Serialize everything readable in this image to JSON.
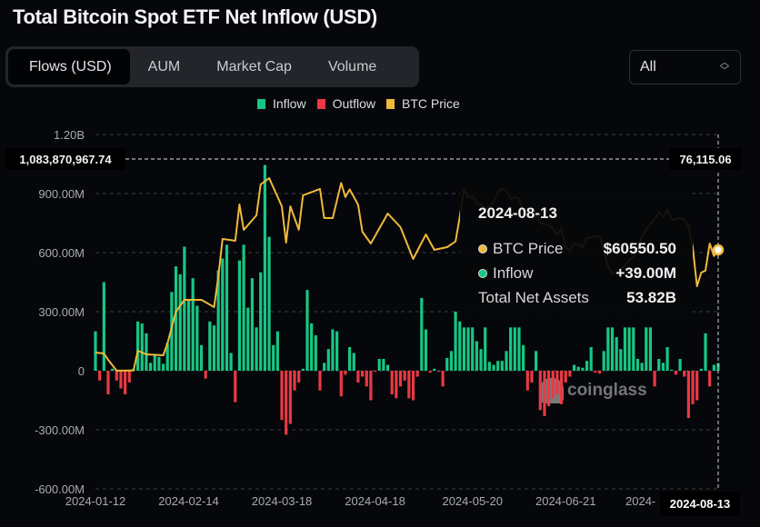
{
  "header": {
    "title": "Total Bitcoin Spot ETF Net Inflow (USD)"
  },
  "tabs": [
    {
      "label": "Flows (USD)",
      "active": true
    },
    {
      "label": "AUM"
    },
    {
      "label": "Market Cap"
    },
    {
      "label": "Volume"
    }
  ],
  "range_select": {
    "value": "All"
  },
  "watermark": "coinglass",
  "colors": {
    "inflow": "#16c784",
    "outflow": "#ea3943",
    "price": "#f0b93a",
    "background": "#05070b"
  },
  "tooltip": {
    "date": "2024-08-13",
    "rows": [
      {
        "label": "BTC Price",
        "value": "$60550.50",
        "color": "#f0b93a"
      },
      {
        "label": "Inflow",
        "value": "+39.00M",
        "color": "#16c784"
      },
      {
        "label": "Total Net Assets",
        "value": "53.82B"
      }
    ]
  },
  "crosshair": {
    "left_value": "1,083,870,967.74",
    "right_value": "76,115.06",
    "date": "2024-08-13"
  },
  "chart_data": {
    "type": "bar+line",
    "title": "Total Bitcoin Spot ETF Net Inflow (USD)",
    "legend": {
      "position": "top-center",
      "items": [
        "Inflow",
        "Outflow",
        "BTC Price"
      ]
    },
    "y_left": {
      "unit": "USD",
      "range": [
        -600000000,
        1200000000
      ],
      "ticks": [
        "1.20B",
        "900.00M",
        "600.00M",
        "300.00M",
        "0",
        "-300.00M",
        "-600.00M"
      ],
      "tick_values": [
        1200,
        900,
        600,
        300,
        0,
        -300,
        -600
      ]
    },
    "x_ticks": [
      {
        "label": "2024-01-12",
        "index": 0
      },
      {
        "label": "2024-02-14",
        "index": 22
      },
      {
        "label": "2024-03-18",
        "index": 44
      },
      {
        "label": "2024-04-18",
        "index": 66
      },
      {
        "label": "2024-05-20",
        "index": 89
      },
      {
        "label": "2024-06-21",
        "index": 111
      },
      {
        "label": "2024-",
        "index": 131
      }
    ],
    "grid": true,
    "series": [
      {
        "name": "Flows",
        "unit": "M USD",
        "type": "bar",
        "values": [
          200,
          -50,
          450,
          -120,
          10,
          -50,
          -90,
          -120,
          -60,
          10,
          250,
          240,
          190,
          40,
          80,
          70,
          35,
          140,
          400,
          530,
          490,
          630,
          360,
          470,
          330,
          130,
          -40,
          250,
          230,
          510,
          570,
          640,
          90,
          -160,
          560,
          640,
          320,
          470,
          220,
          500,
          1045,
          680,
          130,
          200,
          -250,
          -325,
          -270,
          -100,
          -60,
          10,
          410,
          240,
          180,
          -100,
          40,
          110,
          210,
          200,
          -130,
          -20,
          120,
          90,
          -60,
          -30,
          -80,
          -150,
          -5,
          60,
          60,
          30,
          -120,
          -140,
          -80,
          -50,
          -140,
          -150,
          -30,
          370,
          210,
          -10,
          10,
          -5,
          -80,
          65,
          100,
          300,
          250,
          220,
          220,
          220,
          150,
          110,
          220,
          45,
          30,
          50,
          50,
          100,
          220,
          220,
          220,
          130,
          -100,
          -60,
          100,
          -200,
          -230,
          -180,
          -140,
          -120,
          -170,
          -60,
          -30,
          30,
          20,
          15,
          50,
          120,
          -10,
          -15,
          100,
          220,
          220,
          170,
          110,
          220,
          220,
          220,
          60,
          40,
          220,
          220,
          -80,
          60,
          40,
          120,
          5,
          -20,
          60,
          -30,
          -240,
          -170,
          -150,
          10,
          190,
          -80,
          30,
          39
        ]
      },
      {
        "name": "BTC Price",
        "unit": "USD",
        "type": "line",
        "values": [
          42960,
          42880,
          42800,
          41720,
          40800,
          39850,
          39860,
          39870,
          39890,
          39900,
          43270,
          42960,
          42650,
          42610,
          42580,
          42540,
          42500,
          44520,
          47250,
          49970,
          50980,
          51990,
          51990,
          51990,
          51990,
          51990,
          51580,
          51160,
          50750,
          55880,
          62420,
          62320,
          62210,
          62110,
          68330,
          63970,
          64800,
          65630,
          66460,
          71760,
          72300,
          72850,
          71230,
          69620,
          68000,
          61800,
          68000,
          66000,
          64000,
          69900,
          70170,
          70440,
          70710,
          70980,
          66000,
          66000,
          66000,
          69000,
          72000,
          69600,
          70900,
          69600,
          68300,
          63660,
          62650,
          61640,
          62920,
          64210,
          65490,
          66780,
          66000,
          65220,
          64440,
          62620,
          60810,
          58990,
          60390,
          61800,
          63200,
          61870,
          60550,
          60700,
          60860,
          61020,
          61500,
          62000,
          66150,
          71000,
          69500,
          69800,
          68500,
          68300,
          67600,
          67900,
          68800,
          70500,
          71000,
          70800,
          69300,
          69600,
          69400,
          67000,
          66700,
          66000,
          66500,
          65200,
          64900,
          64800,
          64100,
          63200,
          64300,
          61000,
          60400,
          61700,
          61500,
          60900,
          62600,
          62700,
          62800,
          62900,
          60600,
          57700,
          56500,
          56700,
          57300,
          57900,
          58900,
          59300,
          60800,
          62800,
          64000,
          65000,
          65800,
          67000,
          66100,
          67500,
          65700,
          65800,
          66000,
          65800,
          64600,
          61000,
          54330,
          56660,
          57000,
          61640,
          59500,
          60550.5
        ]
      }
    ]
  }
}
